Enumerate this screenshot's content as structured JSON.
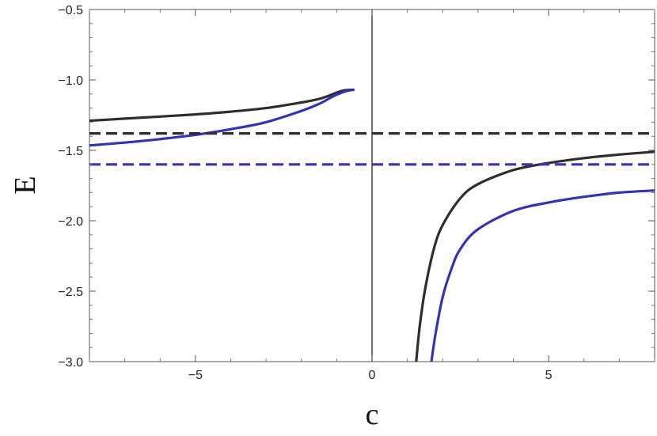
{
  "chart_data": {
    "type": "line",
    "title": "",
    "xlabel": "c",
    "ylabel": "E",
    "xlim": [
      -8,
      8
    ],
    "ylim": [
      -3.0,
      -0.5
    ],
    "xticks": [
      -5,
      0,
      5
    ],
    "xtick_labels": [
      "−5",
      "0",
      "5"
    ],
    "yticks": [
      -0.5,
      -1.0,
      -1.5,
      -2.0,
      -2.5,
      -3.0
    ],
    "ytick_labels": [
      "−0.5",
      "−1.0",
      "−1.5",
      "−2.0",
      "−2.5",
      "−3.0"
    ],
    "grid": false,
    "legend": "none",
    "reference_line_x": 0,
    "series": [
      {
        "color": "#2e2e2e",
        "style": "solid",
        "x": [
          -8,
          -7,
          -6,
          -5,
          -4,
          -3,
          -2,
          -1.5,
          -1.2,
          -1.0,
          -0.8,
          -0.6,
          -0.5
        ],
        "y": [
          -1.29,
          -1.275,
          -1.26,
          -1.245,
          -1.225,
          -1.2,
          -1.16,
          -1.135,
          -1.11,
          -1.09,
          -1.075,
          -1.07,
          -1.07
        ]
      },
      {
        "color": "#3333b3",
        "style": "solid",
        "x": [
          -8,
          -7,
          -6,
          -5,
          -4,
          -3,
          -2,
          -1.5,
          -1.2,
          -1.0,
          -0.8,
          -0.6,
          -0.5
        ],
        "y": [
          -1.465,
          -1.445,
          -1.42,
          -1.39,
          -1.35,
          -1.3,
          -1.22,
          -1.17,
          -1.13,
          -1.105,
          -1.085,
          -1.072,
          -1.07
        ]
      },
      {
        "color": "#2e2e2e",
        "style": "solid",
        "x": [
          1.25,
          1.35,
          1.5,
          1.75,
          2.0,
          2.5,
          3.0,
          4.0,
          5.0,
          6.0,
          7.0,
          8.0
        ],
        "y": [
          -3.0,
          -2.75,
          -2.49,
          -2.2,
          -2.03,
          -1.84,
          -1.74,
          -1.64,
          -1.59,
          -1.555,
          -1.53,
          -1.51
        ]
      },
      {
        "color": "#3333b3",
        "style": "solid",
        "x": [
          1.68,
          1.8,
          2.0,
          2.25,
          2.5,
          3.0,
          4.0,
          5.0,
          6.0,
          7.0,
          8.0
        ],
        "y": [
          -3.0,
          -2.8,
          -2.54,
          -2.34,
          -2.2,
          -2.06,
          -1.93,
          -1.87,
          -1.83,
          -1.8,
          -1.785
        ]
      },
      {
        "color": "#2e2e2e",
        "style": "dashed",
        "x": [
          -8,
          8
        ],
        "y": [
          -1.38,
          -1.38
        ]
      },
      {
        "color": "#3333b3",
        "style": "dashed",
        "x": [
          -8,
          8
        ],
        "y": [
          -1.6,
          -1.6
        ]
      }
    ]
  }
}
